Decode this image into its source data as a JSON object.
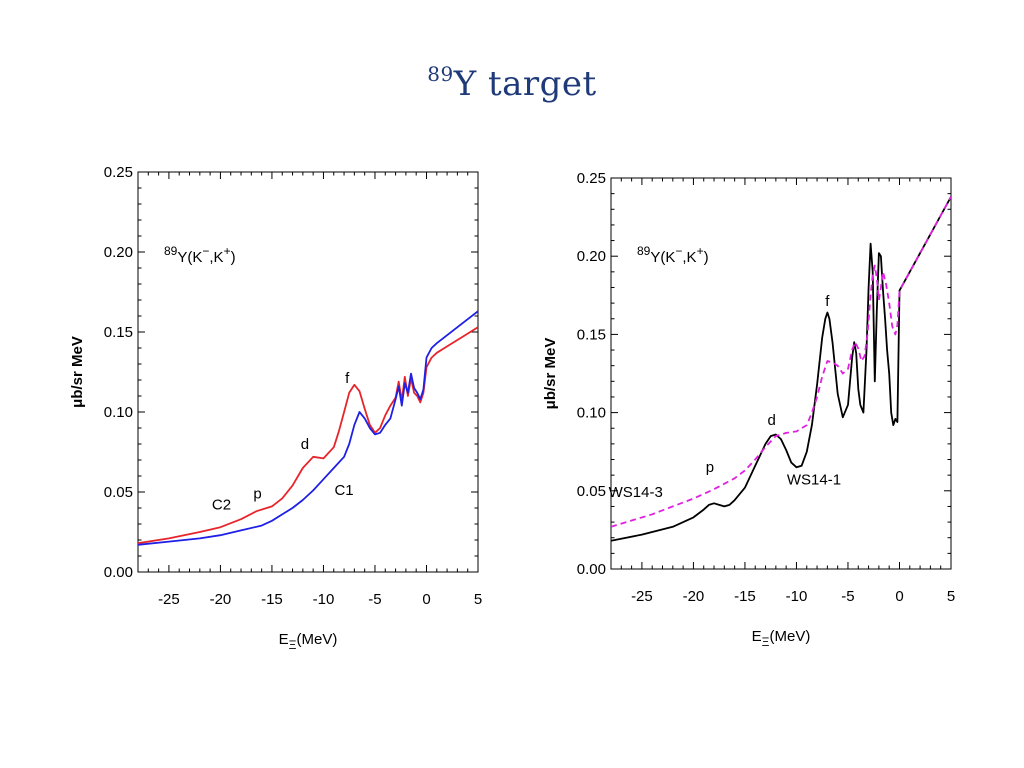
{
  "slide": {
    "title_sup": "89",
    "title_main": "Y target"
  },
  "chart_data": [
    {
      "type": "line",
      "reaction": "89Y(K−,K+)",
      "xlabel": "EΞ(MeV)",
      "ylabel": "μb/sr MeV",
      "xlim": [
        -28,
        5
      ],
      "ylim": [
        0,
        0.25
      ],
      "x_ticks": [
        -25,
        -20,
        -15,
        -10,
        -5,
        0,
        5
      ],
      "y_ticks": [
        0.0,
        0.05,
        0.1,
        0.15,
        0.2,
        0.25
      ],
      "series": [
        {
          "name": "C2",
          "color": "#e8242b",
          "x": [
            -28,
            -25,
            -22,
            -20,
            -18,
            -16.5,
            -15,
            -14,
            -13,
            -12,
            -11,
            -10,
            -9,
            -8.5,
            -8,
            -7.5,
            -7,
            -6.5,
            -6,
            -5.5,
            -5,
            -4.5,
            -4,
            -3.5,
            -3,
            -2.7,
            -2.4,
            -2.1,
            -1.8,
            -1.5,
            -1.2,
            -0.9,
            -0.6,
            -0.3,
            0,
            0.5,
            1,
            2,
            3,
            4,
            5
          ],
          "y": [
            0.018,
            0.021,
            0.025,
            0.028,
            0.033,
            0.038,
            0.041,
            0.046,
            0.054,
            0.065,
            0.072,
            0.071,
            0.078,
            0.088,
            0.1,
            0.112,
            0.117,
            0.113,
            0.102,
            0.092,
            0.087,
            0.09,
            0.098,
            0.104,
            0.109,
            0.119,
            0.107,
            0.122,
            0.11,
            0.121,
            0.112,
            0.11,
            0.106,
            0.112,
            0.128,
            0.134,
            0.137,
            0.141,
            0.145,
            0.149,
            0.153
          ]
        },
        {
          "name": "C1",
          "color": "#1f1fe6",
          "x": [
            -28,
            -25,
            -22,
            -20,
            -18,
            -16,
            -15,
            -14,
            -13,
            -12,
            -11,
            -10,
            -9,
            -8,
            -7.5,
            -7,
            -6.5,
            -6,
            -5.5,
            -5,
            -4.5,
            -4,
            -3.5,
            -3,
            -2.7,
            -2.4,
            -2.1,
            -1.8,
            -1.5,
            -1.2,
            -0.9,
            -0.6,
            -0.3,
            0,
            0.5,
            1,
            2,
            3,
            4,
            5
          ],
          "y": [
            0.017,
            0.019,
            0.021,
            0.023,
            0.026,
            0.029,
            0.032,
            0.036,
            0.04,
            0.045,
            0.051,
            0.058,
            0.065,
            0.072,
            0.08,
            0.092,
            0.1,
            0.096,
            0.09,
            0.086,
            0.087,
            0.092,
            0.096,
            0.108,
            0.116,
            0.104,
            0.118,
            0.112,
            0.124,
            0.115,
            0.112,
            0.108,
            0.114,
            0.134,
            0.14,
            0.143,
            0.148,
            0.153,
            0.158,
            0.163
          ]
        }
      ],
      "annotations": [
        {
          "text": "C2",
          "x": -19.9,
          "y": 0.039,
          "color": "#e8242b"
        },
        {
          "text": "p",
          "x": -16.4,
          "y": 0.046,
          "color": "#e8242b"
        },
        {
          "text": "d",
          "x": -11.8,
          "y": 0.077,
          "color": "#e8242b"
        },
        {
          "text": "f",
          "x": -7.7,
          "y": 0.118,
          "color": "#e8242b"
        },
        {
          "text": "C1",
          "x": -8.0,
          "y": 0.048,
          "color": "#1f1fe6"
        }
      ]
    },
    {
      "type": "line",
      "reaction": "89Y(K−,K+)",
      "xlabel": "EΞ(MeV)",
      "ylabel": "μb/sr MeV",
      "xlim": [
        -28,
        5
      ],
      "ylim": [
        0,
        0.25
      ],
      "x_ticks": [
        -25,
        -20,
        -15,
        -10,
        -5,
        0,
        5
      ],
      "y_ticks": [
        0.0,
        0.05,
        0.1,
        0.15,
        0.2,
        0.25
      ],
      "series": [
        {
          "name": "WS14-1",
          "color": "#000000",
          "dash": "solid",
          "x": [
            -28,
            -25,
            -22,
            -20,
            -19,
            -18.5,
            -18,
            -17.5,
            -17,
            -16.5,
            -16,
            -15,
            -14,
            -13,
            -12.5,
            -12,
            -11.5,
            -11,
            -10.5,
            -10,
            -9.5,
            -9,
            -8.5,
            -8,
            -7.5,
            -7.2,
            -7,
            -6.8,
            -6.5,
            -6,
            -5.5,
            -5,
            -4.6,
            -4.4,
            -4.2,
            -4.0,
            -3.8,
            -3.5,
            -3.2,
            -3.0,
            -2.8,
            -2.6,
            -2.4,
            -2.2,
            -2.0,
            -1.8,
            -1.6,
            -1.4,
            -1.2,
            -1.0,
            -0.8,
            -0.6,
            -0.4,
            -0.2,
            0,
            1,
            2,
            3,
            4,
            5
          ],
          "y": [
            0.018,
            0.022,
            0.027,
            0.033,
            0.038,
            0.041,
            0.042,
            0.041,
            0.04,
            0.041,
            0.044,
            0.052,
            0.066,
            0.08,
            0.085,
            0.086,
            0.083,
            0.076,
            0.068,
            0.065,
            0.066,
            0.075,
            0.092,
            0.118,
            0.148,
            0.16,
            0.164,
            0.16,
            0.145,
            0.112,
            0.097,
            0.105,
            0.135,
            0.145,
            0.138,
            0.115,
            0.105,
            0.1,
            0.14,
            0.18,
            0.208,
            0.19,
            0.12,
            0.165,
            0.202,
            0.2,
            0.178,
            0.16,
            0.14,
            0.125,
            0.1,
            0.092,
            0.096,
            0.094,
            0.178,
            0.19,
            0.202,
            0.214,
            0.226,
            0.238
          ]
        },
        {
          "name": "WS14-3",
          "color": "#e020e0",
          "dash": "dashed",
          "x": [
            -28,
            -26,
            -24,
            -22,
            -20,
            -18,
            -16,
            -15,
            -14,
            -13,
            -12,
            -11,
            -10,
            -9,
            -8.5,
            -8,
            -7.5,
            -7,
            -6.5,
            -6,
            -5.5,
            -5,
            -4.6,
            -4.3,
            -4.0,
            -3.7,
            -3.4,
            -3.1,
            -2.8,
            -2.6,
            -2.4,
            -2.2,
            -2.0,
            -1.8,
            -1.6,
            -1.3,
            -1.0,
            -0.7,
            -0.4,
            -0.2,
            0,
            1,
            2,
            3,
            4,
            5
          ],
          "y": [
            0.027,
            0.031,
            0.035,
            0.04,
            0.045,
            0.051,
            0.058,
            0.063,
            0.07,
            0.078,
            0.085,
            0.087,
            0.088,
            0.092,
            0.1,
            0.11,
            0.123,
            0.133,
            0.132,
            0.13,
            0.125,
            0.128,
            0.14,
            0.145,
            0.141,
            0.133,
            0.136,
            0.15,
            0.175,
            0.188,
            0.194,
            0.186,
            0.172,
            0.18,
            0.19,
            0.182,
            0.17,
            0.155,
            0.15,
            0.156,
            0.178,
            0.19,
            0.202,
            0.214,
            0.226,
            0.238
          ]
        }
      ],
      "annotations": [
        {
          "text": "p",
          "x": -18.4,
          "y": 0.062,
          "color": "#000000"
        },
        {
          "text": "d",
          "x": -12.4,
          "y": 0.092,
          "color": "#000000"
        },
        {
          "text": "f",
          "x": -7.0,
          "y": 0.168,
          "color": "#000000"
        },
        {
          "text": "WS14-1",
          "x": -8.3,
          "y": 0.054,
          "color": "#000000"
        },
        {
          "text": "WS14-3",
          "x": -25.6,
          "y": 0.046,
          "color": "#e020e0"
        }
      ]
    }
  ]
}
